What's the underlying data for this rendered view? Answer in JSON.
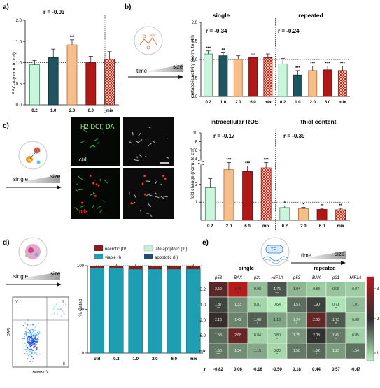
{
  "panels": {
    "a": {
      "label": "a)",
      "ylabel": "SSC-A (norm. to ctrl)",
      "r_text": "r = -0.03",
      "ticks_y": [
        "0.0",
        "0.5",
        "1.0",
        "1.5",
        "2.0"
      ],
      "categories": [
        "0.2",
        "1.0",
        "2.0",
        "6.0",
        "mix"
      ],
      "values": [
        0.95,
        1.12,
        1.42,
        1.0,
        1.08
      ],
      "errors": [
        0.1,
        0.2,
        0.12,
        0.15,
        0.18
      ],
      "stars": [
        "",
        "",
        "***",
        "",
        ""
      ]
    },
    "b": {
      "label": "b)",
      "ylabel": "metabolic activity (norm. to ctrl)",
      "subtitle_single": "single",
      "subtitle_repeated": "repeated",
      "r_single": "r = -0.34",
      "r_repeated": "r = -0.24",
      "time_label": "time",
      "size_label": "size",
      "ticks_y": [
        "0.0",
        "0.5",
        "1.0",
        "1.5",
        "2.0"
      ],
      "categories": [
        "0.2",
        "1.0",
        "2.0",
        "6.0",
        "mix",
        "0.2",
        "1.0",
        "2.0",
        "6.0",
        "mix"
      ],
      "values": [
        1.15,
        1.1,
        1.0,
        1.05,
        1.05,
        0.88,
        0.58,
        0.7,
        0.72,
        0.7
      ],
      "errors": [
        0.08,
        0.08,
        0.1,
        0.1,
        0.1,
        0.15,
        0.12,
        0.12,
        0.1,
        0.12
      ],
      "stars": [
        "***",
        "**",
        "",
        "",
        "",
        "",
        "***",
        "***",
        "***",
        "***"
      ]
    },
    "c": {
      "label": "c)",
      "ylabel": "fold change (norm. to ctrl)",
      "title_ros": "intracellular ROS",
      "title_thiol": "thiol content",
      "r_ros": "r = -0.17",
      "r_thiol": "r = -0.39",
      "micro_title": "H2-DCF-DA",
      "ctrl_label": "ctrl",
      "mix_label": "mix",
      "single_label": "single",
      "size_label": "size",
      "ticks_y": [
        "1",
        "2",
        "4",
        "6",
        "8",
        "10"
      ],
      "categories": [
        "0.2",
        "2.0",
        "6.0",
        "mix",
        "0.2",
        "2.0",
        "6.0",
        "mix"
      ],
      "values": [
        1.8,
        2.8,
        2.7,
        2.9,
        0.7,
        0.65,
        0.6,
        0.58
      ],
      "errors": [
        0.5,
        0.4,
        0.3,
        0.3,
        0.1,
        0.06,
        0.06,
        0.08
      ],
      "stars": [
        "",
        "***",
        "***",
        "***",
        "*",
        "*",
        "**",
        "**"
      ]
    },
    "d": {
      "label": "d)",
      "ylabel": "% Gated",
      "single_label": "single",
      "size_label": "size",
      "legend": [
        "necrotic (IV)",
        "late apoptotic (III)",
        "viable (I)",
        "apoptotic (II)"
      ],
      "ticks_y": [
        "0",
        "50",
        "100"
      ],
      "categories": [
        "ctrl",
        "0.2",
        "1.0",
        "2.0",
        "6.0",
        "mix"
      ],
      "viable": [
        97,
        97,
        96,
        96,
        96,
        96
      ],
      "flow_xlabel": "Annexin V",
      "flow_ylabel": "DAPI",
      "quadrants": [
        "IV",
        "III",
        "I",
        "II"
      ]
    },
    "e": {
      "label": "e)",
      "title_single": "single",
      "title_repeated": "repeated",
      "time_label": "time",
      "size_label": "size",
      "tf_label": "TF",
      "genes": [
        "p53",
        "BAX",
        "p21",
        "HIF1A"
      ],
      "rows": [
        "0.2",
        "1.0",
        "2.0",
        "6.0",
        "mix"
      ],
      "single": [
        [
          2.5,
          3.49,
          0.98,
          1.76
        ],
        [
          1.87,
          1.33,
          0.81,
          0.64
        ],
        [
          2.16,
          1.42,
          1.68,
          1.18
        ],
        [
          1.58,
          2.68,
          0.84,
          0.8
        ],
        [
          1.5,
          1.34,
          1.15,
          0.8
        ]
      ],
      "single_stars": [
        [
          "",
          "*",
          "",
          "***"
        ],
        [
          "**",
          "",
          "",
          ""
        ],
        [
          "",
          "",
          "*",
          ""
        ],
        [
          "",
          "",
          "",
          "*"
        ],
        [
          "***",
          "",
          "",
          "*"
        ]
      ],
      "repeated": [
        [
          1.04,
          0.88,
          0.95,
          0.87
        ],
        [
          1.57,
          1.9,
          0.71,
          1.01
        ],
        [
          1.24,
          2.6,
          1.73,
          0.88
        ],
        [
          1.29,
          2.03,
          1.49,
          0.85
        ],
        [
          1.5,
          1.62,
          1.25,
          1.54
        ]
      ],
      "repeated_stars": [
        [
          "",
          "",
          "",
          ""
        ],
        [
          "",
          "",
          "*",
          ""
        ],
        [
          "*",
          "",
          "*",
          ""
        ],
        [
          "",
          "*",
          "*",
          ""
        ],
        [
          "",
          "*",
          "",
          ""
        ]
      ],
      "r_label": "r",
      "r_single": [
        "-0.82",
        "0.06",
        "-0.16",
        "-0.50"
      ],
      "r_repeated": [
        "0.18",
        "0.44",
        "0.57",
        "-0.47"
      ],
      "colorbar_ticks": [
        "1",
        "2",
        "3"
      ]
    }
  }
}
